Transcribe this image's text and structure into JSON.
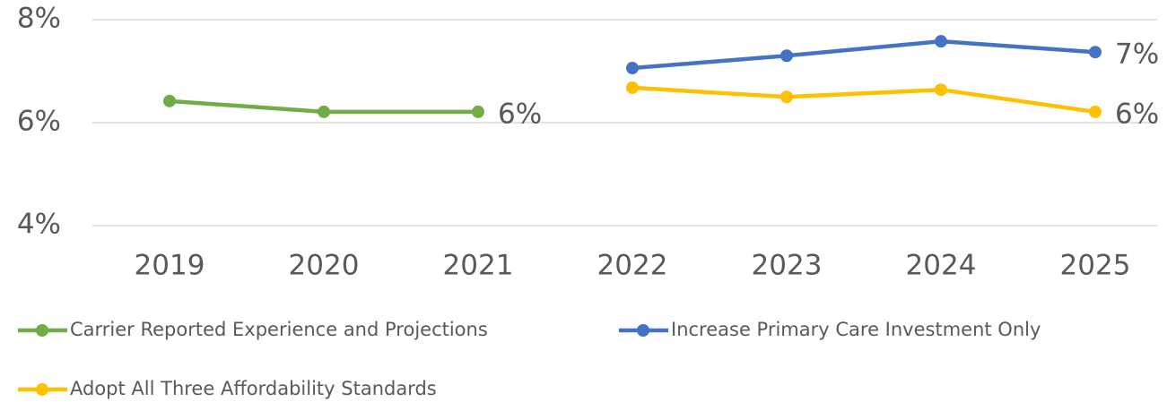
{
  "chart_data": {
    "type": "line",
    "categories": [
      "2019",
      "2020",
      "2021",
      "2022",
      "2023",
      "2024",
      "2025"
    ],
    "series": [
      {
        "name": "Carrier Reported Experience and Projections",
        "color": "#70ad47",
        "values": [
          6.42,
          6.21,
          6.21,
          null,
          null,
          null,
          null
        ],
        "value_labels": [
          null,
          null,
          "6%",
          null,
          null,
          null,
          null
        ]
      },
      {
        "name": "Increase Primary Care Investment Only",
        "color": "#4472c4",
        "values": [
          null,
          null,
          null,
          7.06,
          7.3,
          7.58,
          7.37
        ],
        "value_labels": [
          null,
          null,
          null,
          null,
          null,
          null,
          "7%"
        ]
      },
      {
        "name": "Adopt All Three Affordability Standards",
        "color": "#ffc000",
        "values": [
          null,
          null,
          null,
          6.68,
          6.5,
          6.64,
          6.21
        ],
        "value_labels": [
          null,
          null,
          null,
          null,
          null,
          null,
          "6%"
        ]
      }
    ],
    "ylim": [
      4,
      8
    ],
    "yticks": [
      {
        "value": 4,
        "label": "4%"
      },
      {
        "value": 6,
        "label": "6%"
      },
      {
        "value": 8,
        "label": "8%"
      }
    ],
    "grid": true,
    "legend": "bottom"
  }
}
